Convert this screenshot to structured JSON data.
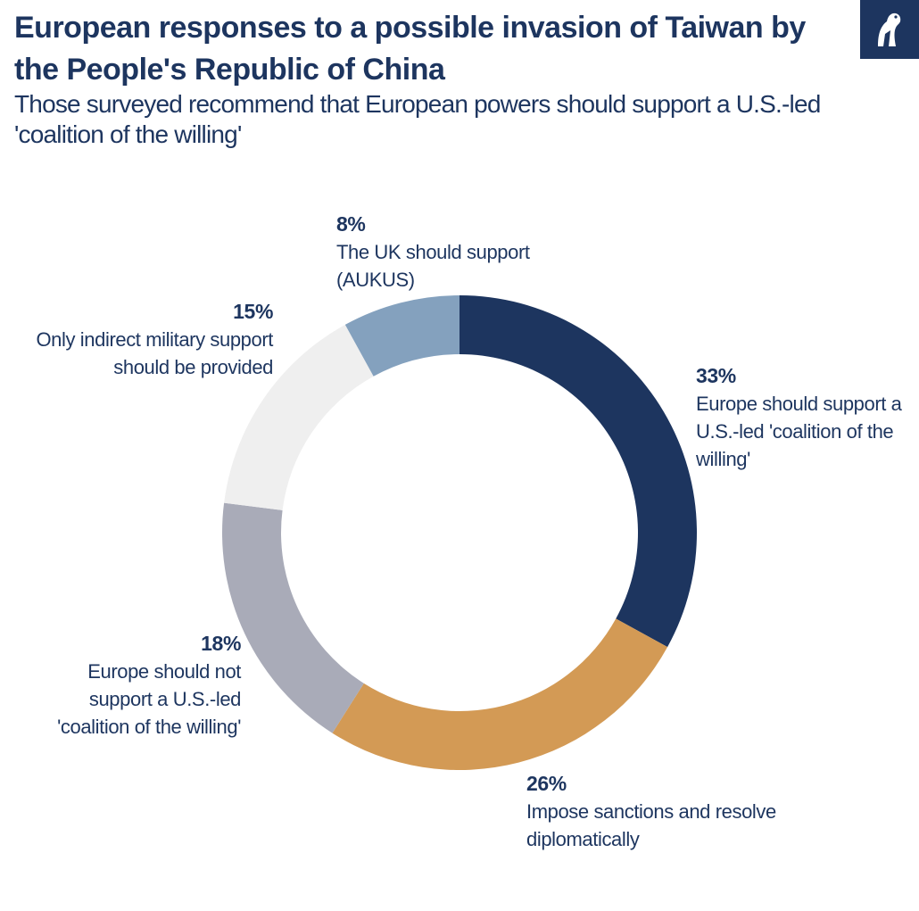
{
  "header": {
    "title": "European responses to a possible invasion of Taiwan by the People's Republic of China",
    "subtitle": "Those surveyed recommend that European powers should support a U.S.-led 'coalition of the willing'"
  },
  "logo": {
    "icon": "bird-logo-icon"
  },
  "chart_data": {
    "type": "pie",
    "donut": true,
    "slices": [
      {
        "label": "Europe should support a U.S.-led 'coalition of the willing'",
        "value": 33,
        "display": "33%",
        "color": "#1d355f"
      },
      {
        "label": "Impose sanctions and resolve diplomatically",
        "value": 26,
        "display": "26%",
        "color": "#d39a55"
      },
      {
        "label": "Europe should not support a U.S.-led 'coalition of the willing'",
        "value": 18,
        "display": "18%",
        "color": "#a9abb8"
      },
      {
        "label": "Only indirect military support should be provided",
        "value": 15,
        "display": "15%",
        "color": "#efefef"
      },
      {
        "label": "The UK should support (AUKUS)",
        "value": 8,
        "display": "8%",
        "color": "#84a1be"
      }
    ]
  }
}
